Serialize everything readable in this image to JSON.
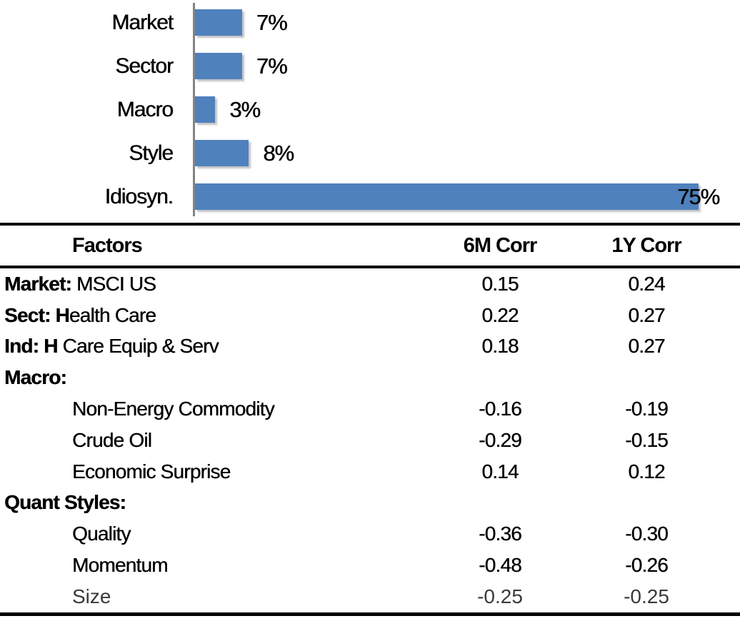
{
  "chart_data": [
    {
      "type": "bar",
      "orientation": "horizontal",
      "title": "",
      "xlabel": "",
      "ylabel": "",
      "unit": "%",
      "categories": [
        "Market",
        "Sector",
        "Macro",
        "Style",
        "Idiosyn."
      ],
      "values": [
        7,
        7,
        3,
        8,
        75
      ],
      "value_labels": [
        "7%",
        "7%",
        "3%",
        "8%",
        "75%"
      ],
      "xlim": [
        0,
        80
      ],
      "grid": false,
      "legend": false,
      "bar_color": "#4F81BD",
      "axis_color": "#848484",
      "label_color": "#000000"
    },
    {
      "type": "table",
      "columns": [
        "Factors",
        "6M Corr",
        "1Y Corr"
      ],
      "rows": [
        {
          "factor_bold": "Market:",
          "factor_rest": " MSCI US",
          "indent": false,
          "muted": false,
          "corr_6m": "0.15",
          "corr_1y": "0.24"
        },
        {
          "factor_bold": "Sect: H",
          "factor_rest": "ealth Care",
          "indent": false,
          "muted": false,
          "corr_6m": "0.22",
          "corr_1y": "0.27"
        },
        {
          "factor_bold": "Ind: H",
          "factor_rest": " Care Equip & Serv",
          "indent": false,
          "muted": false,
          "corr_6m": "0.18",
          "corr_1y": "0.27"
        },
        {
          "factor_bold": "Macro:",
          "factor_rest": "",
          "indent": false,
          "muted": false,
          "corr_6m": "",
          "corr_1y": ""
        },
        {
          "factor_bold": "",
          "factor_rest": "Non-Energy Commodity",
          "indent": true,
          "muted": false,
          "corr_6m": "-0.16",
          "corr_1y": "-0.19"
        },
        {
          "factor_bold": "",
          "factor_rest": "Crude Oil",
          "indent": true,
          "muted": false,
          "corr_6m": "-0.29",
          "corr_1y": "-0.15"
        },
        {
          "factor_bold": "",
          "factor_rest": "Economic Surprise",
          "indent": true,
          "muted": false,
          "corr_6m": "0.14",
          "corr_1y": "0.12"
        },
        {
          "factor_bold": "Quant Styles:",
          "factor_rest": "",
          "indent": false,
          "muted": false,
          "corr_6m": "",
          "corr_1y": ""
        },
        {
          "factor_bold": "",
          "factor_rest": "Quality",
          "indent": true,
          "muted": false,
          "corr_6m": "-0.36",
          "corr_1y": "-0.30"
        },
        {
          "factor_bold": "",
          "factor_rest": "Momentum",
          "indent": true,
          "muted": false,
          "corr_6m": "-0.48",
          "corr_1y": "-0.26"
        },
        {
          "factor_bold": "",
          "factor_rest": "Size",
          "indent": true,
          "muted": true,
          "corr_6m": "-0.25",
          "corr_1y": "-0.25"
        }
      ]
    }
  ]
}
